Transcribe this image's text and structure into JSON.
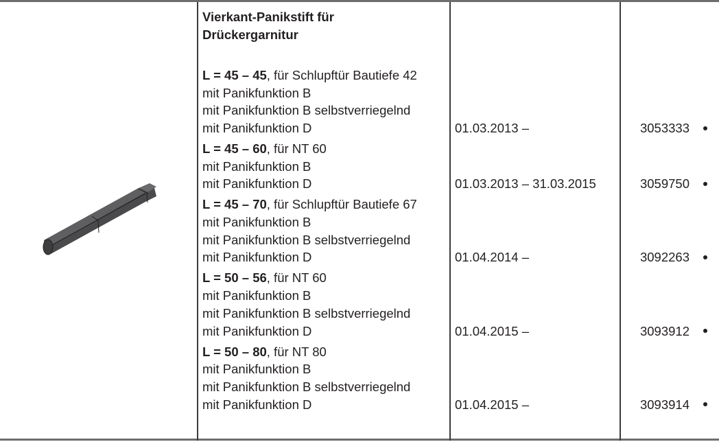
{
  "title": [
    "Vierkant-Panikstift für",
    "Drückergarnitur"
  ],
  "image_alt": "square-panic-pin",
  "groups": [
    {
      "length": "L = 45 – 45",
      "suffix": ", für Schlupftür Bautiefe 42",
      "lines": [
        "mit Panikfunktion B",
        "mit Panikfunktion B selbstverriegelnd",
        "mit Panikfunktion D"
      ],
      "date": "01.03.2013 –",
      "number": "3053333"
    },
    {
      "length": "L = 45 – 60",
      "suffix": ", für NT 60",
      "lines": [
        "mit Panikfunktion B",
        "mit Panikfunktion D"
      ],
      "date": "01.03.2013 – 31.03.2015",
      "number": "3059750"
    },
    {
      "length": "L = 45 – 70",
      "suffix": ", für Schlupftür Bautiefe 67",
      "lines": [
        "mit Panikfunktion B",
        "mit Panikfunktion B selbstverriegelnd",
        "mit Panikfunktion D"
      ],
      "date": "01.04.2014 –",
      "number": "3092263"
    },
    {
      "length": "L = 50 – 56",
      "suffix": ", für NT 60",
      "lines": [
        "mit Panikfunktion B",
        "mit Panikfunktion B selbstverriegelnd",
        "mit Panikfunktion D"
      ],
      "date": "01.04.2015 –",
      "number": "3093912"
    },
    {
      "length": "L = 50 – 80",
      "suffix": ", für NT 80",
      "lines": [
        "mit Panikfunktion B",
        "mit Panikfunktion B selbstverriegelnd",
        "mit Panikfunktion D"
      ],
      "date": "01.04.2015 –",
      "number": "3093914"
    }
  ]
}
